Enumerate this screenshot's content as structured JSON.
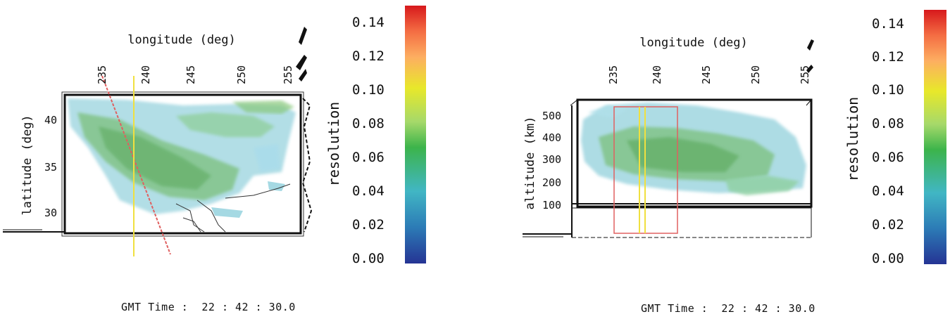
{
  "left_panel": {
    "x_axis_label": "longitude (deg)",
    "x_ticks": [
      "235",
      "240",
      "245",
      "250",
      "255"
    ],
    "y_axis_label": "latitude (deg)",
    "y_ticks": [
      "40",
      "35",
      "30"
    ],
    "colorbar": {
      "label": "resolution",
      "ticks": [
        "0.14",
        "0.12",
        "0.10",
        "0.08",
        "0.06",
        "0.04",
        "0.02",
        "0.00"
      ],
      "colors": [
        "#d7191c",
        "#f46d43",
        "#fdae61",
        "#e8e82a",
        "#a6d96a",
        "#3cb44b",
        "#41b6c4",
        "#2c7bb6",
        "#253494"
      ]
    },
    "time_label": "GMT Time :",
    "time_value": "22 : 42 : 30.0"
  },
  "right_panel": {
    "x_axis_label": "longitude (deg)",
    "x_ticks": [
      "235",
      "240",
      "245",
      "250",
      "255"
    ],
    "y_axis_label": "altitude (km)",
    "y_ticks": [
      "500",
      "400",
      "300",
      "200",
      "100"
    ],
    "colorbar": {
      "label": "resolution",
      "ticks": [
        "0.14",
        "0.12",
        "0.10",
        "0.08",
        "0.06",
        "0.04",
        "0.02",
        "0.00"
      ],
      "colors": [
        "#d7191c",
        "#f46d43",
        "#fdae61",
        "#e8e82a",
        "#a6d96a",
        "#3cb44b",
        "#41b6c4",
        "#2c7bb6",
        "#253494"
      ]
    },
    "time_label": "GMT Time :",
    "time_value": "22 : 42 : 30.0"
  },
  "colors": {
    "cloud_cyan": "#8fd0dc",
    "cloud_green": "#7cc07c",
    "track_red": "#e06060",
    "track_yellow": "#f0e040"
  }
}
